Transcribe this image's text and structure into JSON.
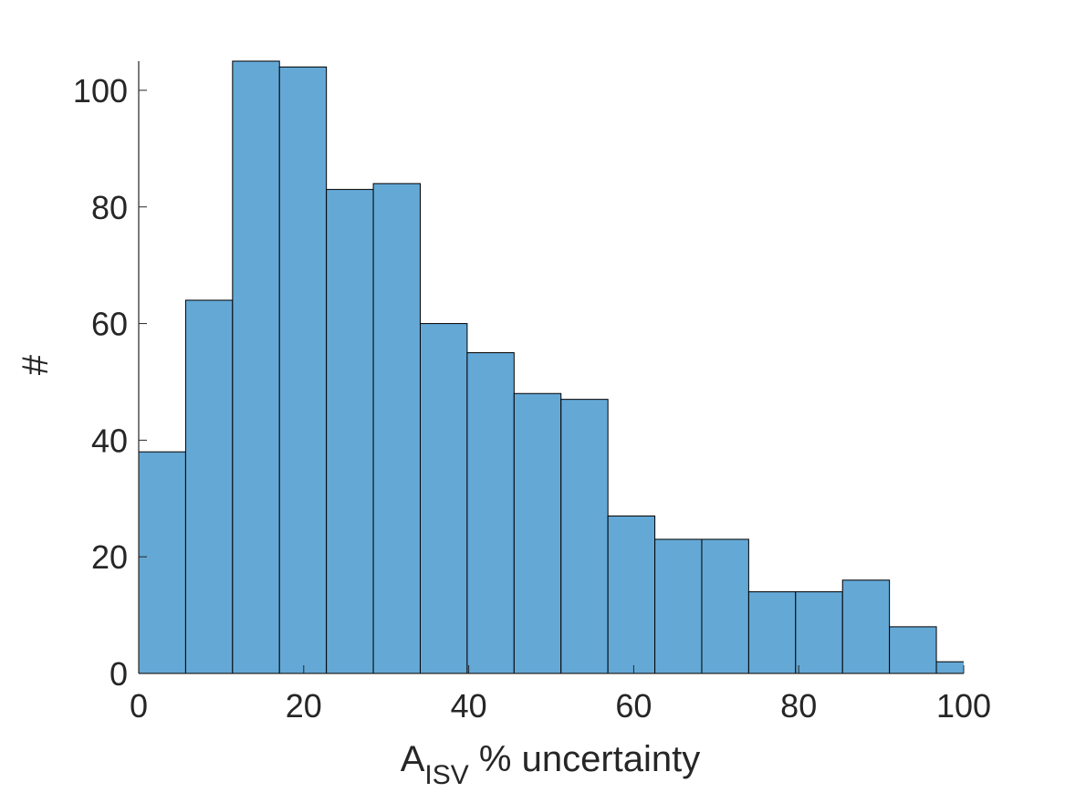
{
  "chart_data": {
    "type": "bar",
    "histogram": true,
    "bin_edges": [
      0,
      5.6875,
      11.375,
      17.0625,
      22.75,
      28.4375,
      34.125,
      39.8125,
      45.5,
      51.1875,
      56.875,
      62.5625,
      68.25,
      73.9375,
      79.625,
      85.3125,
      91.0,
      96.6875,
      102.375
    ],
    "values": [
      38,
      64,
      105,
      104,
      83,
      84,
      60,
      55,
      48,
      47,
      27,
      23,
      23,
      14,
      14,
      16,
      8,
      2
    ],
    "xlim": [
      0,
      100
    ],
    "ylim": [
      0,
      105
    ],
    "xticks": [
      "0",
      "20",
      "40",
      "60",
      "80",
      "100"
    ],
    "yticks": [
      "0",
      "20",
      "40",
      "60",
      "80",
      "100"
    ],
    "xlabel": {
      "main": "A",
      "subscript": "ISV",
      "rest": " % uncertainty"
    },
    "ylabel": "#",
    "title": "",
    "grid": false,
    "colors": {
      "bar_fill": "#64a8d6",
      "bar_edge": "#000000",
      "axis": "#262626"
    }
  }
}
